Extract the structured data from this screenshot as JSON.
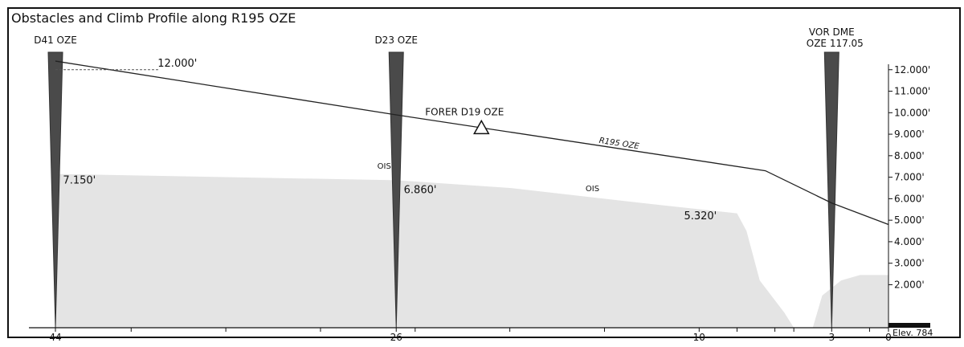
{
  "chart_data": {
    "type": "area",
    "title": "Obstacles and Climb Profile along R195 OZE",
    "x_axis": {
      "reversed": true,
      "range": [
        44,
        0
      ],
      "labels": [
        {
          "value": 44,
          "text": "44"
        },
        {
          "value": 26,
          "text": "26"
        },
        {
          "value": 10,
          "text": "10"
        },
        {
          "value": 3,
          "text": "3"
        },
        {
          "value": 0,
          "text": "0"
        }
      ],
      "ticks": [
        44,
        40,
        35,
        30,
        26,
        25,
        20,
        15,
        10,
        8,
        6,
        5,
        3,
        1,
        0
      ],
      "elevation_label": "Elev. 784"
    },
    "y_axis": {
      "range": [
        0,
        13000
      ],
      "labels": [
        {
          "value": 12000,
          "text": "12.000'"
        },
        {
          "value": 11000,
          "text": "11.000'"
        },
        {
          "value": 10000,
          "text": "10.000'"
        },
        {
          "value": 9000,
          "text": "9.000'"
        },
        {
          "value": 8000,
          "text": "8.000'"
        },
        {
          "value": 7000,
          "text": "7.000'"
        },
        {
          "value": 6000,
          "text": "6.000'"
        },
        {
          "value": 5000,
          "text": "5.000'"
        },
        {
          "value": 4000,
          "text": "4.000'"
        },
        {
          "value": 3000,
          "text": "3.000'"
        },
        {
          "value": 2000,
          "text": "2.000'"
        }
      ]
    },
    "climb_profile": {
      "label": "R195 OZE",
      "color": "#222222",
      "points": [
        {
          "x": 44,
          "y": 12400
        },
        {
          "x": 26,
          "y": 9900
        },
        {
          "x": 6.5,
          "y": 7300
        },
        {
          "x": 3,
          "y": 5800
        },
        {
          "x": 0,
          "y": 4800
        }
      ],
      "altitude_label": "12.000'",
      "altitude_value": 12000
    },
    "ois_area": {
      "color": "#e4e4e4",
      "labels": [
        {
          "text": "OIS",
          "x": 27,
          "y": 7400
        },
        {
          "text": "OIS",
          "x": 16,
          "y": 6350
        }
      ],
      "points": [
        {
          "x": 44,
          "y": 7150
        },
        {
          "x": 26,
          "y": 6860
        },
        {
          "x": 20,
          "y": 6500
        },
        {
          "x": 12,
          "y": 5700
        },
        {
          "x": 8,
          "y": 5320
        },
        {
          "x": 7.5,
          "y": 4500
        },
        {
          "x": 6.8,
          "y": 2200
        },
        {
          "x": 5.5,
          "y": 700
        },
        {
          "x": 5.0,
          "y": 0
        },
        {
          "x": 4.0,
          "y": 0
        },
        {
          "x": 3.5,
          "y": 1500
        },
        {
          "x": 2.5,
          "y": 2200
        },
        {
          "x": 1.5,
          "y": 2450
        },
        {
          "x": 0,
          "y": 2450
        }
      ]
    },
    "obstacle_labels": [
      {
        "text": "7.150'",
        "x": 43.6,
        "y": 6700
      },
      {
        "text": "6.860'",
        "x": 25.6,
        "y": 6250
      },
      {
        "text": "5.320'",
        "x": 10.8,
        "y": 5050
      }
    ],
    "fixes": [
      {
        "label": "D41 OZE",
        "x": 44
      },
      {
        "label": "D23 OZE",
        "x": 26
      },
      {
        "label": "VOR DME",
        "label2": "OZE 117.05",
        "x": 3
      }
    ],
    "waypoint": {
      "label": "FORER D19 OZE",
      "x": 21.5,
      "y": 9250
    }
  }
}
